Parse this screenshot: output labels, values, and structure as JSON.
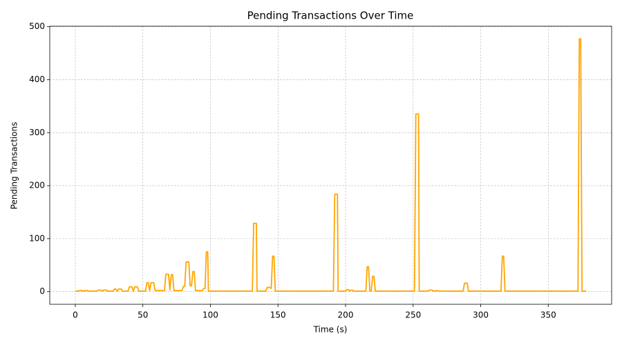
{
  "chart_data": {
    "type": "line",
    "title": "Pending Transactions Over Time",
    "x_label": "Time (s)",
    "y_label": "Pending Transactions",
    "x": [
      0,
      2,
      3,
      5,
      6,
      8,
      9,
      10,
      16,
      17,
      19,
      20,
      21,
      23,
      24,
      28,
      29,
      30,
      31,
      32,
      34,
      35,
      39,
      40,
      42,
      43,
      44,
      46,
      47,
      52,
      53,
      54,
      55,
      56,
      58,
      59,
      66,
      67,
      69,
      70,
      71,
      72,
      73,
      79,
      80,
      81,
      82,
      84,
      85,
      86,
      87,
      88,
      89,
      94,
      95,
      96,
      97,
      98,
      98.5,
      131,
      132,
      134,
      134.5,
      141,
      142,
      144,
      145,
      146,
      147,
      148,
      191,
      192,
      194,
      194.5,
      200,
      201,
      202,
      203,
      204,
      205,
      206,
      215,
      216,
      217,
      218,
      219,
      220,
      221,
      222,
      251,
      252,
      254,
      254.5,
      261,
      262,
      264,
      265,
      268,
      269,
      287,
      288,
      290,
      291,
      315,
      316,
      317,
      318,
      372,
      373,
      374,
      375,
      378
    ],
    "values": [
      1,
      1,
      2,
      2,
      1,
      2,
      2,
      1,
      1,
      3,
      3,
      1,
      3,
      3,
      1,
      1,
      5,
      5,
      1,
      5,
      5,
      1,
      1,
      9,
      9,
      1,
      9,
      9,
      1,
      1,
      17,
      17,
      2,
      17,
      17,
      2,
      2,
      33,
      33,
      3,
      32,
      32,
      2,
      2,
      10,
      10,
      56,
      56,
      11,
      11,
      38,
      38,
      2,
      2,
      6,
      6,
      75,
      75,
      1,
      1,
      129,
      129,
      1,
      1,
      8,
      8,
      6,
      67,
      67,
      1,
      1,
      184,
      184,
      1,
      1,
      4,
      4,
      1,
      3,
      3,
      1,
      1,
      47,
      47,
      1,
      1,
      29,
      29,
      1,
      1,
      335,
      335,
      1,
      1,
      3,
      3,
      1,
      2,
      1,
      1,
      16,
      16,
      1,
      1,
      67,
      67,
      1,
      1,
      477,
      477,
      1,
      1
    ],
    "color": "#ffa500",
    "xlim": [
      -18.9,
      396.9
    ],
    "xticks": [
      0,
      50,
      100,
      150,
      200,
      250,
      300,
      350
    ],
    "ylim": [
      -23.85,
      500.85
    ],
    "yticks": [
      0,
      100,
      200,
      300,
      400,
      500
    ],
    "grid": true
  }
}
